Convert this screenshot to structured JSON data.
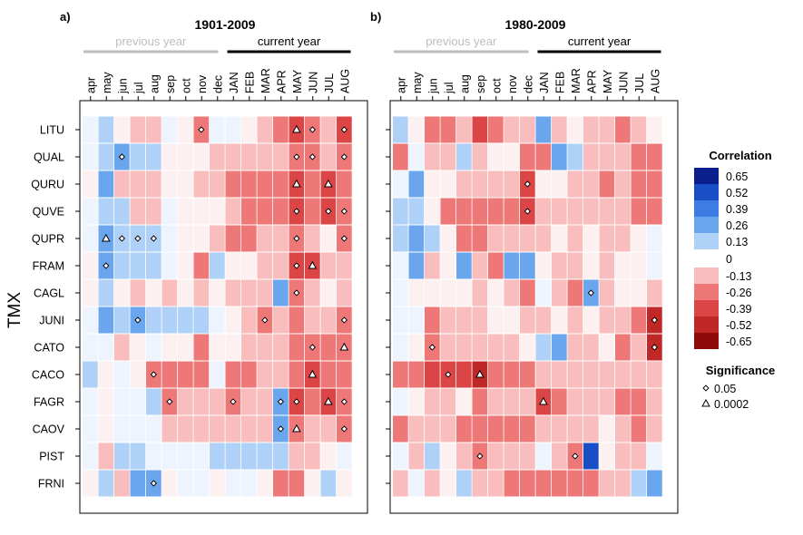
{
  "figure": {
    "y_axis_label": "TMX",
    "labels": {
      "prev": "previous year",
      "curr": "current year"
    }
  },
  "legend": {
    "title": "Correlation",
    "colors": [
      "#0a1e8c",
      "#1a4ec7",
      "#3d7de3",
      "#6aa6ee",
      "#b0d1f7",
      "#ffffff",
      "#f9bdbd",
      "#ee7878",
      "#dc4545",
      "#c02727",
      "#8f0a0a"
    ],
    "labels": [
      "0.65",
      "0.52",
      "0.39",
      "0.26",
      "0.13",
      "0",
      "-0.13",
      "-0.26",
      "-0.39",
      "-0.52",
      "-0.65"
    ],
    "significance_title": "Significance",
    "significance_labels": [
      "0.05",
      "0.0002"
    ]
  },
  "chart_data": [
    {
      "type": "heatmap",
      "panel_label": "a)",
      "title": "1901-2009",
      "months": [
        "apr",
        "may",
        "jun",
        "jul",
        "aug",
        "sep",
        "oct",
        "nov",
        "dec",
        "JAN",
        "FEB",
        "MAR",
        "APR",
        "MAY",
        "JUN",
        "JUL",
        "AUG"
      ],
      "species": [
        "LITU",
        "QUAL",
        "QURU",
        "QUVE",
        "QUPR",
        "FRAM",
        "CAGL",
        "JUNI",
        "CATO",
        "CACO",
        "FAGR",
        "CAOV",
        "PIST",
        "FRNI"
      ],
      "values": [
        [
          0.02,
          0.13,
          -0.05,
          -0.1,
          -0.08,
          0.05,
          -0.03,
          -0.3,
          0.05,
          0.03,
          -0.03,
          -0.08,
          -0.2,
          -0.4,
          -0.2,
          -0.1,
          -0.35
        ],
        [
          0.0,
          0.13,
          0.27,
          0.15,
          0.13,
          -0.05,
          -0.05,
          -0.05,
          -0.1,
          -0.1,
          -0.15,
          -0.1,
          -0.1,
          -0.3,
          -0.2,
          -0.1,
          -0.3
        ],
        [
          -0.03,
          0.2,
          -0.1,
          -0.13,
          -0.08,
          -0.05,
          -0.05,
          -0.13,
          -0.13,
          -0.2,
          -0.2,
          -0.25,
          -0.2,
          -0.38,
          -0.2,
          -0.38,
          -0.25
        ],
        [
          0.05,
          0.15,
          0.1,
          -0.1,
          -0.1,
          0.05,
          -0.05,
          -0.05,
          -0.05,
          -0.15,
          -0.25,
          -0.2,
          -0.2,
          -0.35,
          -0.2,
          -0.38,
          -0.25
        ],
        [
          0.03,
          0.28,
          0.18,
          0.15,
          0.13,
          0.0,
          -0.05,
          -0.05,
          -0.1,
          -0.2,
          -0.2,
          -0.15,
          -0.1,
          -0.3,
          -0.1,
          -0.05,
          -0.3
        ],
        [
          -0.05,
          0.2,
          0.15,
          0.13,
          0.1,
          0.05,
          -0.05,
          -0.2,
          0.15,
          -0.05,
          -0.05,
          -0.1,
          -0.15,
          -0.35,
          -0.38,
          -0.1,
          -0.1
        ],
        [
          -0.05,
          0.1,
          -0.05,
          -0.1,
          -0.05,
          -0.1,
          -0.05,
          -0.1,
          -0.05,
          -0.1,
          -0.15,
          -0.1,
          0.2,
          -0.3,
          -0.1,
          -0.05,
          -0.1
        ],
        [
          0.03,
          0.2,
          0.13,
          0.3,
          0.13,
          0.1,
          0.08,
          0.08,
          0.05,
          -0.05,
          -0.1,
          -0.3,
          -0.13,
          -0.2,
          -0.1,
          -0.13,
          -0.3
        ],
        [
          0.02,
          0.05,
          -0.08,
          -0.05,
          0.05,
          -0.05,
          -0.05,
          -0.25,
          -0.05,
          -0.05,
          -0.15,
          -0.15,
          -0.15,
          -0.3,
          -0.3,
          -0.2,
          -0.3
        ],
        [
          0.1,
          -0.03,
          0.05,
          -0.05,
          -0.3,
          -0.25,
          -0.2,
          -0.2,
          0.05,
          -0.2,
          -0.2,
          -0.1,
          -0.15,
          -0.3,
          -0.38,
          -0.2,
          -0.2
        ],
        [
          0.02,
          -0.03,
          0.03,
          0.0,
          0.13,
          -0.3,
          -0.1,
          -0.1,
          -0.08,
          -0.3,
          -0.1,
          -0.08,
          0.26,
          -0.38,
          -0.2,
          -0.38,
          -0.3
        ],
        [
          0.05,
          -0.02,
          0.0,
          0.02,
          0.02,
          -0.15,
          -0.1,
          -0.1,
          -0.15,
          -0.15,
          -0.15,
          -0.1,
          0.3,
          -0.3,
          -0.1,
          -0.1,
          -0.2
        ],
        [
          0.0,
          -0.1,
          0.15,
          0.15,
          0.05,
          0.0,
          0.0,
          0.05,
          0.15,
          0.15,
          0.15,
          0.1,
          0.15,
          -0.1,
          -0.1,
          -0.05,
          0.02
        ],
        [
          -0.05,
          0.13,
          -0.1,
          0.2,
          0.26,
          -0.05,
          0.0,
          0.0,
          -0.05,
          0.05,
          0.0,
          -0.05,
          -0.2,
          -0.2,
          -0.05,
          0.13,
          -0.05
        ]
      ],
      "significance": [
        [
          null,
          null,
          null,
          null,
          null,
          null,
          null,
          "0.05",
          null,
          null,
          null,
          null,
          null,
          "0.0002",
          "0.05",
          null,
          "0.05"
        ],
        [
          null,
          null,
          "0.05",
          null,
          null,
          null,
          null,
          null,
          null,
          null,
          null,
          null,
          null,
          "0.05",
          "0.05",
          null,
          "0.05"
        ],
        [
          null,
          null,
          null,
          null,
          null,
          null,
          null,
          null,
          null,
          null,
          null,
          null,
          null,
          "0.0002",
          null,
          "0.0002",
          null
        ],
        [
          null,
          null,
          null,
          null,
          null,
          null,
          null,
          null,
          null,
          null,
          null,
          null,
          null,
          "0.05",
          null,
          "0.05",
          "0.05"
        ],
        [
          null,
          "0.0002",
          "0.05",
          "0.05",
          "0.05",
          null,
          null,
          null,
          null,
          null,
          null,
          null,
          null,
          "0.05",
          null,
          null,
          "0.05"
        ],
        [
          null,
          "0.05",
          null,
          null,
          null,
          null,
          null,
          null,
          null,
          null,
          null,
          null,
          null,
          "0.05",
          "0.0002",
          null,
          null
        ],
        [
          null,
          null,
          null,
          null,
          null,
          null,
          null,
          null,
          null,
          null,
          null,
          null,
          null,
          "0.05",
          null,
          null,
          null
        ],
        [
          null,
          null,
          null,
          "0.05",
          null,
          null,
          null,
          null,
          null,
          null,
          null,
          "0.05",
          null,
          null,
          null,
          null,
          "0.05"
        ],
        [
          null,
          null,
          null,
          null,
          null,
          null,
          null,
          null,
          null,
          null,
          null,
          null,
          null,
          null,
          "0.05",
          null,
          "0.0002"
        ],
        [
          null,
          null,
          null,
          null,
          "0.05",
          null,
          null,
          null,
          null,
          null,
          null,
          null,
          null,
          null,
          "0.0002",
          null,
          null
        ],
        [
          null,
          null,
          null,
          null,
          null,
          "0.05",
          null,
          null,
          null,
          "0.05",
          null,
          null,
          "0.05",
          "0.05",
          null,
          "0.0002",
          "0.05"
        ],
        [
          null,
          null,
          null,
          null,
          null,
          null,
          null,
          null,
          null,
          null,
          null,
          null,
          "0.05",
          "0.0002",
          null,
          null,
          "0.05"
        ],
        [
          null,
          null,
          null,
          null,
          null,
          null,
          null,
          null,
          null,
          null,
          null,
          null,
          null,
          null,
          null,
          null,
          null
        ],
        [
          null,
          null,
          null,
          null,
          "0.05",
          null,
          null,
          null,
          null,
          null,
          null,
          null,
          null,
          null,
          null,
          null,
          null
        ]
      ]
    },
    {
      "type": "heatmap",
      "panel_label": "b)",
      "title": "1980-2009",
      "months": [
        "apr",
        "may",
        "jun",
        "jul",
        "aug",
        "sep",
        "oct",
        "nov",
        "dec",
        "JAN",
        "FEB",
        "MAR",
        "APR",
        "MAY",
        "JUN",
        "JUL",
        "AUG"
      ],
      "species": [
        "LITU",
        "QUAL",
        "QURU",
        "QUVE",
        "QUPR",
        "FRAM",
        "CAGL",
        "JUNI",
        "CATO",
        "CACO",
        "FAGR",
        "CAOV",
        "PIST",
        "FRNI"
      ],
      "values": [
        [
          0.13,
          -0.05,
          -0.2,
          -0.25,
          -0.15,
          -0.4,
          -0.2,
          -0.15,
          -0.1,
          0.2,
          -0.1,
          -0.05,
          -0.15,
          -0.15,
          -0.2,
          -0.1,
          -0.05
        ],
        [
          -0.26,
          0.05,
          -0.1,
          -0.1,
          0.1,
          -0.1,
          -0.05,
          -0.05,
          -0.2,
          -0.2,
          0.2,
          0.13,
          -0.1,
          -0.1,
          -0.15,
          -0.3,
          -0.2
        ],
        [
          0.0,
          0.2,
          -0.05,
          -0.05,
          -0.1,
          -0.1,
          -0.15,
          -0.15,
          -0.4,
          -0.05,
          -0.05,
          -0.1,
          -0.15,
          -0.2,
          -0.15,
          -0.2,
          -0.2
        ],
        [
          0.13,
          0.13,
          -0.05,
          -0.2,
          -0.26,
          -0.2,
          -0.2,
          -0.2,
          -0.45,
          -0.15,
          -0.1,
          -0.1,
          -0.15,
          -0.15,
          -0.15,
          -0.2,
          -0.25
        ],
        [
          0.1,
          0.26,
          0.13,
          -0.05,
          -0.25,
          -0.2,
          -0.15,
          -0.15,
          -0.1,
          -0.1,
          -0.05,
          -0.1,
          -0.05,
          -0.1,
          -0.1,
          -0.05,
          0.05
        ],
        [
          0.05,
          0.28,
          -0.1,
          -0.05,
          0.2,
          -0.1,
          -0.3,
          0.2,
          0.2,
          -0.05,
          -0.15,
          -0.1,
          -0.05,
          -0.1,
          -0.05,
          -0.05,
          0.05
        ],
        [
          0.05,
          -0.05,
          -0.05,
          -0.05,
          -0.05,
          -0.1,
          -0.05,
          -0.1,
          -0.3,
          0.05,
          -0.1,
          -0.26,
          0.3,
          -0.1,
          -0.05,
          -0.05,
          -0.1
        ],
        [
          0.0,
          0.02,
          -0.2,
          -0.1,
          -0.1,
          -0.1,
          -0.05,
          -0.05,
          -0.1,
          -0.15,
          -0.05,
          -0.1,
          -0.05,
          -0.1,
          -0.1,
          -0.3,
          -0.5
        ],
        [
          0.05,
          -0.05,
          -0.25,
          -0.1,
          -0.1,
          -0.1,
          -0.1,
          -0.1,
          -0.05,
          0.15,
          0.26,
          -0.1,
          -0.1,
          -0.05,
          -0.3,
          -0.15,
          -0.5
        ],
        [
          -0.25,
          -0.3,
          -0.35,
          -0.38,
          -0.35,
          -0.52,
          -0.3,
          -0.3,
          -0.3,
          -0.1,
          -0.1,
          -0.15,
          -0.1,
          -0.1,
          -0.1,
          -0.1,
          -0.1
        ],
        [
          0.02,
          -0.05,
          -0.15,
          -0.1,
          -0.05,
          -0.2,
          -0.15,
          -0.1,
          -0.1,
          -0.45,
          -0.2,
          -0.1,
          -0.1,
          -0.1,
          -0.2,
          -0.2,
          -0.15
        ],
        [
          -0.2,
          -0.1,
          -0.15,
          -0.15,
          -0.2,
          -0.2,
          -0.2,
          -0.2,
          -0.2,
          -0.15,
          -0.1,
          -0.1,
          -0.15,
          -0.05,
          -0.1,
          -0.2,
          -0.1
        ],
        [
          0.05,
          -0.1,
          0.13,
          -0.05,
          -0.1,
          -0.3,
          -0.15,
          -0.1,
          -0.1,
          0.05,
          -0.1,
          -0.25,
          0.55,
          -0.05,
          -0.15,
          -0.15,
          0.0
        ],
        [
          -0.1,
          0.05,
          -0.1,
          -0.05,
          0.1,
          -0.1,
          -0.15,
          -0.2,
          -0.2,
          -0.3,
          -0.3,
          -0.25,
          -0.2,
          -0.1,
          -0.1,
          0.15,
          0.26
        ]
      ],
      "significance": [
        [
          null,
          null,
          null,
          null,
          null,
          null,
          null,
          null,
          null,
          null,
          null,
          null,
          null,
          null,
          null,
          null,
          null
        ],
        [
          null,
          null,
          null,
          null,
          null,
          null,
          null,
          null,
          null,
          null,
          null,
          null,
          null,
          null,
          null,
          null,
          null
        ],
        [
          null,
          null,
          null,
          null,
          null,
          null,
          null,
          null,
          "0.05",
          null,
          null,
          null,
          null,
          null,
          null,
          null,
          null
        ],
        [
          null,
          null,
          null,
          null,
          null,
          null,
          null,
          null,
          "0.05",
          null,
          null,
          null,
          null,
          null,
          null,
          null,
          null
        ],
        [
          null,
          null,
          null,
          null,
          null,
          null,
          null,
          null,
          null,
          null,
          null,
          null,
          null,
          null,
          null,
          null,
          null
        ],
        [
          null,
          null,
          null,
          null,
          null,
          null,
          null,
          null,
          null,
          null,
          null,
          null,
          null,
          null,
          null,
          null,
          null
        ],
        [
          null,
          null,
          null,
          null,
          null,
          null,
          null,
          null,
          null,
          null,
          null,
          null,
          "0.05",
          null,
          null,
          null,
          null
        ],
        [
          null,
          null,
          null,
          null,
          null,
          null,
          null,
          null,
          null,
          null,
          null,
          null,
          null,
          null,
          null,
          null,
          "0.05"
        ],
        [
          null,
          null,
          "0.05",
          null,
          null,
          null,
          null,
          null,
          null,
          null,
          null,
          null,
          null,
          null,
          null,
          null,
          "0.05"
        ],
        [
          null,
          null,
          null,
          "0.05",
          null,
          "0.0002",
          null,
          null,
          null,
          null,
          null,
          null,
          null,
          null,
          null,
          null,
          null
        ],
        [
          null,
          null,
          null,
          null,
          null,
          null,
          null,
          null,
          null,
          "0.0002",
          null,
          null,
          null,
          null,
          null,
          null,
          null
        ],
        [
          null,
          null,
          null,
          null,
          null,
          null,
          null,
          null,
          null,
          null,
          null,
          null,
          null,
          null,
          null,
          null,
          null
        ],
        [
          null,
          null,
          null,
          null,
          null,
          "0.05",
          null,
          null,
          null,
          null,
          null,
          "0.05",
          null,
          null,
          null,
          null,
          null
        ],
        [
          null,
          null,
          null,
          null,
          null,
          null,
          null,
          null,
          null,
          null,
          null,
          null,
          null,
          null,
          null,
          null,
          null
        ]
      ]
    }
  ]
}
